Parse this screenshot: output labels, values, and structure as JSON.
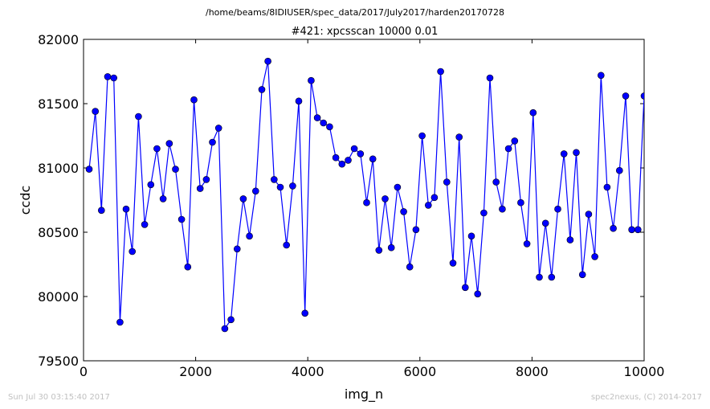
{
  "figure": {
    "suptitle": "/home/beams/8IDIUSER/spec_data/2017/July2017/harden20170728",
    "footer_left": "Sun Jul 30 03:15:40 2017",
    "footer_right": "spec2nexus, (C) 2014-2017"
  },
  "colors": {
    "series": "#0000ff",
    "footer": "#c0c0c0",
    "axis": "#000000"
  },
  "chart_data": {
    "type": "line",
    "title": "#421: xpcsscan 10000 0.01",
    "xlabel": "img_n",
    "ylabel": "ccdc",
    "xlim": [
      0,
      10000
    ],
    "ylim": [
      79500,
      82000
    ],
    "xticks": [
      0,
      2000,
      4000,
      6000,
      8000,
      10000
    ],
    "yticks": [
      79500,
      80000,
      80500,
      81000,
      81500,
      82000
    ],
    "grid": false,
    "marker": "circle",
    "series": [
      {
        "x": [
          100,
          210,
          320,
          430,
          540,
          650,
          760,
          870,
          980,
          1090,
          1200,
          1310,
          1420,
          1530,
          1640,
          1750,
          1860,
          1970,
          2080,
          2190,
          2300,
          2410,
          2520,
          2630,
          2740,
          2850,
          2960,
          3070,
          3180,
          3290,
          3400,
          3510,
          3620,
          3730,
          3840,
          3950,
          4060,
          4170,
          4280,
          4390,
          4500,
          4610,
          4720,
          4830,
          4940,
          5050,
          5160,
          5270,
          5380,
          5490,
          5600,
          5710,
          5820,
          5930,
          6040,
          6150,
          6260,
          6370,
          6480,
          6590,
          6700,
          6810,
          6920,
          7030,
          7140,
          7250,
          7360,
          7470,
          7580,
          7690,
          7800,
          7910,
          8020,
          8130,
          8240,
          8350,
          8460,
          8570,
          8680,
          8790,
          8900,
          9010,
          9120,
          9230,
          9340,
          9450,
          9560,
          9670,
          9780,
          9890,
          10000
        ],
        "y": [
          80990,
          81440,
          80670,
          81710,
          81700,
          79800,
          80680,
          80350,
          81400,
          80560,
          80870,
          81150,
          80760,
          81190,
          80990,
          80600,
          80230,
          81530,
          80840,
          80910,
          81200,
          81310,
          79750,
          79820,
          80370,
          80760,
          80470,
          80820,
          81610,
          81830,
          80910,
          80850,
          80400,
          80860,
          81520,
          79870,
          81680,
          81390,
          81350,
          81320,
          81080,
          81030,
          81060,
          81150,
          81110,
          80730,
          81070,
          80360,
          80760,
          80380,
          80850,
          80660,
          80230,
          80520,
          81250,
          80710,
          80770,
          81750,
          80890,
          80260,
          81240,
          80070,
          80470,
          80020,
          80650,
          81700,
          80890,
          80680,
          81150,
          81210,
          80730,
          80410,
          81430,
          80150,
          80570,
          80150,
          80680,
          81110,
          80440,
          81120,
          80170,
          80640,
          80310,
          81720,
          80850,
          80530,
          80980,
          81560,
          80520,
          80520,
          81560
        ]
      }
    ]
  }
}
